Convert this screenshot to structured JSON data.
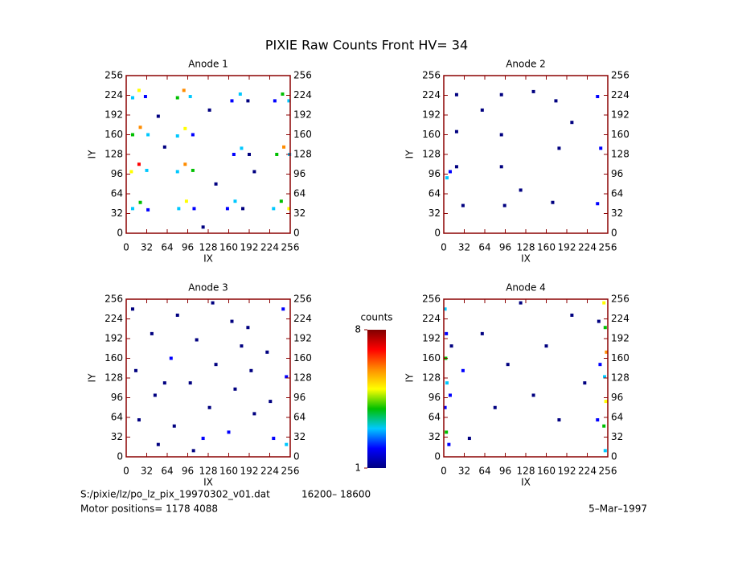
{
  "title": "PIXIE Raw Counts Front HV= 34",
  "file": "S:/pixie/lz/po_lz_pix_19970302_v01.dat",
  "range": "16200– 18600",
  "motor": "Motor positions= 1178 4088",
  "date": "5–Mar–1997",
  "chart_data": [
    {
      "type": "heatmap",
      "title": "Anode 1",
      "xlabel": "IX",
      "ylabel": "IY",
      "xlim": [
        0,
        256
      ],
      "ylim": [
        0,
        256
      ],
      "xticks": [
        0,
        32,
        64,
        96,
        128,
        160,
        192,
        224,
        256
      ],
      "yticks": [
        0,
        32,
        64,
        96,
        128,
        160,
        192,
        224,
        256
      ],
      "x": [
        10,
        20,
        30,
        80,
        90,
        100,
        165,
        178,
        190,
        232,
        244,
        254,
        10,
        22,
        34,
        80,
        92,
        104,
        168,
        180,
        192,
        235,
        246,
        255,
        8,
        20,
        32,
        80,
        92,
        104,
        10,
        22,
        34,
        82,
        94,
        106,
        158,
        170,
        182,
        230,
        242,
        254,
        60,
        130,
        140,
        200,
        50,
        120
      ],
      "y": [
        220,
        232,
        222,
        220,
        232,
        222,
        215,
        226,
        215,
        215,
        226,
        215,
        160,
        172,
        160,
        158,
        170,
        160,
        128,
        138,
        128,
        128,
        140,
        128,
        100,
        112,
        102,
        100,
        112,
        102,
        40,
        50,
        38,
        40,
        52,
        40,
        40,
        52,
        40,
        40,
        52,
        40,
        140,
        200,
        80,
        100,
        190,
        10
      ],
      "values": [
        3,
        5,
        2,
        4,
        6,
        3,
        2,
        3,
        1,
        2,
        4,
        3,
        4,
        6,
        3,
        3,
        5,
        2,
        2,
        3,
        1,
        4,
        6,
        3,
        5,
        7,
        3,
        3,
        6,
        4,
        3,
        4,
        2,
        3,
        5,
        2,
        2,
        3,
        1,
        3,
        4,
        5,
        1,
        1,
        1,
        1,
        1,
        1
      ]
    },
    {
      "type": "heatmap",
      "title": "Anode 2",
      "xlabel": "IX",
      "ylabel": "IY",
      "xlim": [
        0,
        256
      ],
      "ylim": [
        0,
        256
      ],
      "xticks": [
        0,
        32,
        64,
        96,
        128,
        160,
        192,
        224,
        256
      ],
      "yticks": [
        0,
        32,
        64,
        96,
        128,
        160,
        192,
        224,
        256
      ],
      "x": [
        20,
        90,
        175,
        240,
        20,
        90,
        180,
        245,
        10,
        20,
        90,
        30,
        95,
        170,
        240,
        5,
        140,
        60,
        200,
        120
      ],
      "y": [
        225,
        225,
        215,
        222,
        165,
        160,
        138,
        138,
        100,
        108,
        108,
        45,
        45,
        50,
        48,
        90,
        230,
        200,
        180,
        70
      ],
      "values": [
        1,
        1,
        1,
        2,
        1,
        1,
        1,
        2,
        2,
        1,
        1,
        1,
        1,
        1,
        2,
        3,
        1,
        1,
        1,
        1
      ]
    },
    {
      "type": "heatmap",
      "title": "Anode 3",
      "xlabel": "IX",
      "ylabel": "IY",
      "xlim": [
        0,
        256
      ],
      "ylim": [
        0,
        256
      ],
      "xticks": [
        0,
        32,
        64,
        96,
        128,
        160,
        192,
        224,
        256
      ],
      "yticks": [
        0,
        32,
        64,
        96,
        128,
        160,
        192,
        224,
        256
      ],
      "x": [
        10,
        40,
        70,
        100,
        130,
        160,
        190,
        220,
        250,
        20,
        50,
        80,
        110,
        140,
        170,
        200,
        230,
        250,
        15,
        45,
        75,
        105,
        135,
        165,
        195,
        225,
        245,
        60,
        120,
        180
      ],
      "y": [
        240,
        200,
        160,
        120,
        80,
        40,
        210,
        170,
        130,
        60,
        20,
        230,
        190,
        150,
        110,
        70,
        30,
        20,
        140,
        100,
        50,
        10,
        250,
        220,
        140,
        90,
        240,
        120,
        30,
        180
      ],
      "values": [
        1,
        1,
        2,
        1,
        1,
        2,
        1,
        1,
        2,
        1,
        1,
        1,
        1,
        1,
        1,
        1,
        2,
        3,
        1,
        1,
        1,
        1,
        1,
        1,
        1,
        1,
        2,
        1,
        2,
        1
      ]
    },
    {
      "type": "heatmap",
      "title": "Anode 4",
      "xlabel": "IX",
      "ylabel": "IY",
      "xlim": [
        0,
        256
      ],
      "ylim": [
        0,
        256
      ],
      "xticks": [
        0,
        32,
        64,
        96,
        128,
        160,
        192,
        224,
        256
      ],
      "yticks": [
        0,
        32,
        64,
        96,
        128,
        160,
        192,
        224,
        256
      ],
      "x": [
        2,
        4,
        3,
        5,
        2,
        4,
        8,
        10,
        12,
        250,
        252,
        254,
        251,
        253,
        250,
        252,
        244,
        240,
        242,
        60,
        100,
        140,
        180,
        200,
        40,
        120,
        160,
        220,
        80,
        30
      ],
      "y": [
        240,
        200,
        160,
        120,
        80,
        40,
        20,
        100,
        180,
        250,
        210,
        170,
        130,
        90,
        50,
        10,
        150,
        60,
        220,
        200,
        150,
        100,
        60,
        230,
        30,
        250,
        180,
        120,
        80,
        140
      ],
      "values": [
        3,
        2,
        4,
        3,
        2,
        4,
        2,
        2,
        1,
        5,
        4,
        6,
        3,
        5,
        4,
        3,
        2,
        2,
        1,
        1,
        1,
        1,
        1,
        1,
        1,
        1,
        1,
        1,
        1,
        2
      ]
    },
    {
      "type": "colorbar",
      "title": "counts",
      "ylim": [
        1,
        8
      ],
      "yticks": [
        1,
        8
      ],
      "colormap": [
        "#000080",
        "#0000ff",
        "#00c8ff",
        "#00c000",
        "#ffff00",
        "#ff8c00",
        "#ff0000",
        "#800000"
      ]
    }
  ]
}
